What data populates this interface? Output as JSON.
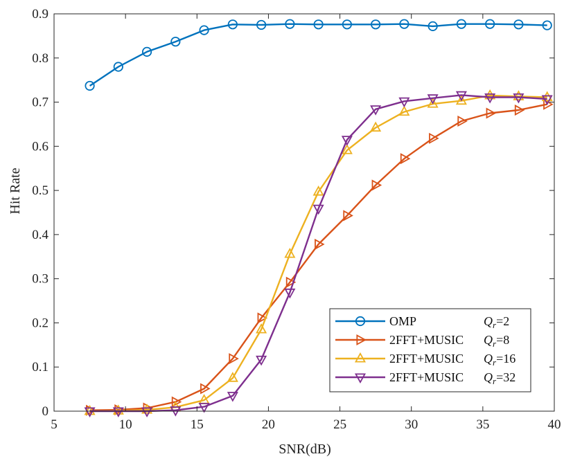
{
  "chart_data": {
    "type": "line",
    "title": "",
    "xlabel": "SNR(dB)",
    "ylabel": "Hit Rate",
    "xlim": [
      5,
      40
    ],
    "ylim": [
      0,
      0.9
    ],
    "xticks": [
      5,
      10,
      15,
      20,
      25,
      30,
      35,
      40
    ],
    "yticks": [
      0,
      0.1,
      0.2,
      0.3,
      0.4,
      0.5,
      0.6,
      0.7,
      0.8,
      0.9
    ],
    "xtick_labels": [
      "5",
      "10",
      "15",
      "20",
      "25",
      "30",
      "35",
      "40"
    ],
    "ytick_labels": [
      "0",
      "0.1",
      "0.2",
      "0.3",
      "0.4",
      "0.5",
      "0.6",
      "0.7",
      "0.8",
      "0.9"
    ],
    "grid": false,
    "legend_position": "bottom-right",
    "x": [
      7.5,
      9.5,
      11.5,
      13.5,
      15.5,
      17.5,
      19.5,
      21.5,
      23.5,
      25.5,
      27.5,
      29.5,
      31.5,
      33.5,
      35.5,
      37.5,
      39.5
    ],
    "series": [
      {
        "name": "OMP",
        "param": "Qr=2",
        "color": "#0072BD",
        "marker": "circle",
        "values": [
          0.737,
          0.78,
          0.814,
          0.837,
          0.863,
          0.876,
          0.875,
          0.877,
          0.876,
          0.876,
          0.876,
          0.877,
          0.872,
          0.877,
          0.877,
          0.876,
          0.874
        ]
      },
      {
        "name": "2FFT+MUSIC",
        "param": "Qr=8",
        "color": "#D95319",
        "marker": "triangle-right",
        "values": [
          0.002,
          0.003,
          0.007,
          0.021,
          0.051,
          0.119,
          0.211,
          0.292,
          0.378,
          0.443,
          0.512,
          0.572,
          0.618,
          0.657,
          0.675,
          0.682,
          0.695
        ]
      },
      {
        "name": "2FFT+MUSIC",
        "param": "Qr=16",
        "color": "#EDB120",
        "marker": "triangle-up",
        "values": [
          0.0,
          0.001,
          0.003,
          0.009,
          0.025,
          0.075,
          0.185,
          0.356,
          0.497,
          0.591,
          0.642,
          0.678,
          0.696,
          0.703,
          0.715,
          0.713,
          0.711
        ]
      },
      {
        "name": "2FFT+MUSIC",
        "param": "Qr=32",
        "color": "#7E2F8E",
        "marker": "triangle-down",
        "values": [
          0.0,
          0.0,
          0.0,
          0.002,
          0.01,
          0.035,
          0.117,
          0.269,
          0.459,
          0.615,
          0.684,
          0.702,
          0.709,
          0.716,
          0.711,
          0.711,
          0.707
        ]
      }
    ],
    "legend": [
      {
        "label": "OMP",
        "q_symbol": "Q",
        "q_sub": "r",
        "q_value": "=2"
      },
      {
        "label": "2FFT+MUSIC",
        "q_symbol": "Q",
        "q_sub": "r",
        "q_value": "=8"
      },
      {
        "label": "2FFT+MUSIC",
        "q_symbol": "Q",
        "q_sub": "r",
        "q_value": "=16"
      },
      {
        "label": "2FFT+MUSIC",
        "q_symbol": "Q",
        "q_sub": "r",
        "q_value": "=32"
      }
    ]
  }
}
